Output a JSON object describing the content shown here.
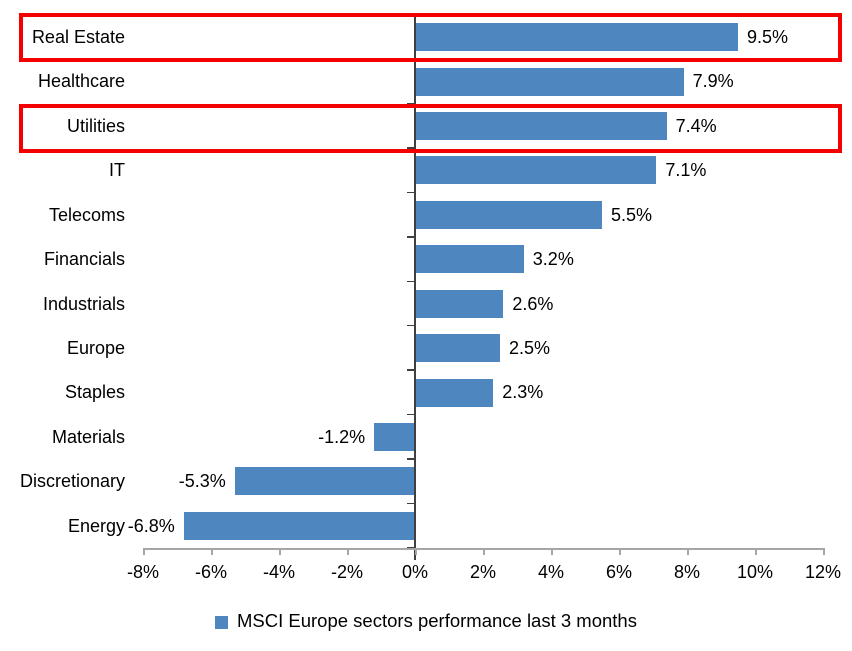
{
  "chart_data": {
    "type": "bar",
    "orientation": "horizontal",
    "title": "",
    "xlabel": "",
    "ylabel": "",
    "categories": [
      "Real Estate",
      "Healthcare",
      "Utilities",
      "IT",
      "Telecoms",
      "Financials",
      "Industrials",
      "Europe",
      "Staples",
      "Materials",
      "Discretionary",
      "Energy"
    ],
    "values": [
      9.5,
      7.9,
      7.4,
      7.1,
      5.5,
      3.2,
      2.6,
      2.5,
      2.3,
      -1.2,
      -5.3,
      -6.8
    ],
    "value_labels": [
      "9.5%",
      "7.9%",
      "7.4%",
      "7.1%",
      "5.5%",
      "3.2%",
      "2.6%",
      "2.5%",
      "2.3%",
      "-1.2%",
      "-5.3%",
      "-6.8%"
    ],
    "xlim": [
      -8,
      12
    ],
    "x_tick_values": [
      -8,
      -6,
      -4,
      -2,
      0,
      2,
      4,
      6,
      8,
      10,
      12
    ],
    "x_tick_labels": [
      "-8%",
      "-6%",
      "-4%",
      "-2%",
      "0%",
      "2%",
      "4%",
      "6%",
      "8%",
      "10%",
      "12%"
    ],
    "grid": false,
    "legend": "MSCI Europe sectors performance last 3 months",
    "legend_position": "bottom",
    "highlighted_categories": [
      "Real Estate",
      "Utilities"
    ],
    "colors": {
      "bar": "#4E86BF",
      "highlight_border": "#F40000",
      "value_axis": "#A6A6A6",
      "category_axis": "#404040",
      "text": "#000000",
      "background": "#FFFFFF"
    }
  }
}
